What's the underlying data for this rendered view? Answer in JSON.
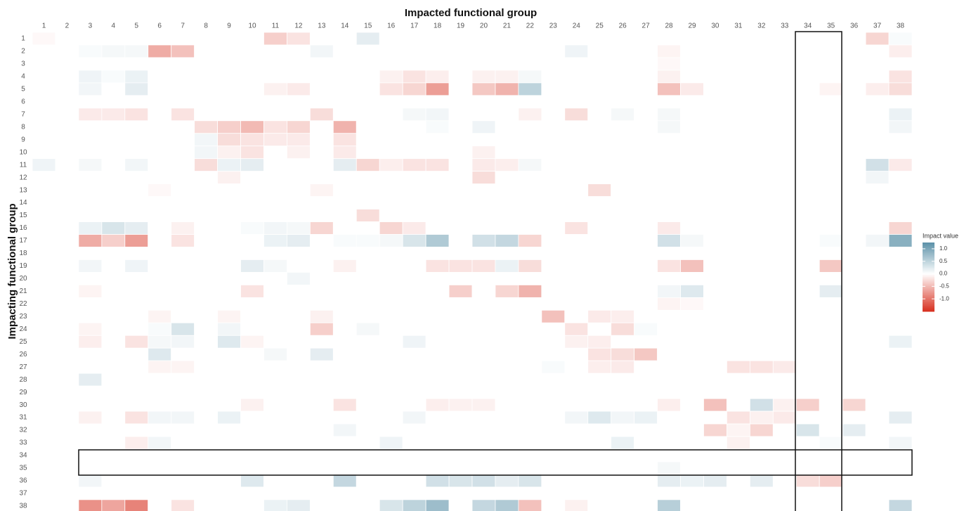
{
  "chart_data": {
    "type": "heatmap",
    "title": "Impacted functional group",
    "ylabel": "Impacting functional group",
    "legend_title": "Impact value",
    "x": [
      1,
      2,
      3,
      4,
      5,
      6,
      7,
      8,
      9,
      10,
      11,
      12,
      13,
      14,
      15,
      16,
      17,
      18,
      19,
      20,
      21,
      22,
      23,
      24,
      25,
      26,
      27,
      28,
      29,
      30,
      31,
      32,
      33,
      34,
      35,
      36,
      37,
      38
    ],
    "y": [
      1,
      2,
      3,
      4,
      5,
      6,
      7,
      8,
      9,
      10,
      11,
      12,
      13,
      14,
      15,
      16,
      17,
      18,
      19,
      20,
      21,
      22,
      23,
      24,
      25,
      26,
      27,
      28,
      29,
      30,
      31,
      32,
      33,
      34,
      35,
      36,
      37,
      38
    ],
    "zlim": [
      -1.5,
      1.25
    ],
    "zticks": [
      {
        "value": 1,
        "label": "1.0"
      },
      {
        "value": 0.5,
        "label": "0.5"
      },
      {
        "value": 0,
        "label": "0.0"
      },
      {
        "value": -0.5,
        "label": "-0.5"
      },
      {
        "value": -1,
        "label": "-1.0"
      }
    ],
    "colors": {
      "low": "#d7301f",
      "mid": "#ffffff",
      "high": "#5b91a8"
    },
    "z": [
      [
        -0.05,
        0,
        0,
        0,
        0,
        0,
        0,
        0,
        0,
        0,
        -0.35,
        -0.2,
        0,
        0,
        0.2,
        0,
        0,
        0,
        0,
        0,
        0,
        0,
        0,
        0,
        0,
        0,
        0,
        0,
        0,
        0,
        0,
        0,
        0,
        0,
        0,
        0,
        -0.3,
        0.05
      ],
      [
        0,
        0,
        0.05,
        0.08,
        0.08,
        -0.6,
        -0.45,
        0,
        0,
        0,
        0,
        0,
        0.1,
        0,
        0,
        0,
        0,
        0,
        0,
        0,
        0,
        0,
        0,
        0.12,
        0,
        0,
        0,
        -0.08,
        0,
        0,
        0,
        0,
        0,
        0,
        0,
        0,
        0,
        -0.12
      ],
      [
        0,
        0,
        0,
        0,
        0,
        0,
        0,
        0,
        0,
        0,
        0,
        0,
        0,
        0,
        0,
        0,
        0,
        0,
        0,
        0,
        0,
        0,
        0,
        0,
        0,
        0,
        0,
        -0.05,
        0,
        0,
        0,
        0,
        0,
        0,
        0,
        0,
        0,
        0
      ],
      [
        0,
        0,
        0.12,
        0.05,
        0.15,
        0,
        0,
        0,
        0,
        0,
        0,
        0,
        0,
        0,
        0,
        -0.1,
        -0.2,
        -0.12,
        0,
        -0.1,
        -0.1,
        0.08,
        0,
        0,
        0,
        0,
        0,
        -0.1,
        0,
        0,
        0,
        0,
        0,
        0,
        0,
        0,
        0,
        -0.2
      ],
      [
        0,
        0,
        0.1,
        0,
        0.2,
        0,
        0,
        0,
        0,
        0,
        -0.1,
        -0.15,
        0,
        0,
        0,
        -0.2,
        -0.3,
        -0.7,
        0,
        -0.4,
        -0.55,
        0.5,
        0,
        0,
        0,
        0,
        0,
        -0.45,
        -0.15,
        0,
        0,
        0,
        0,
        0,
        -0.08,
        0,
        -0.12,
        -0.25
      ],
      [
        0,
        0,
        0,
        0,
        0,
        0,
        0,
        0,
        0,
        0,
        0,
        0,
        0,
        0,
        0,
        0,
        0,
        0,
        0,
        0,
        0,
        0,
        0,
        0,
        0,
        0,
        0,
        0,
        0,
        0,
        0,
        0,
        0,
        0,
        0,
        0,
        0,
        0
      ],
      [
        0,
        0,
        -0.15,
        -0.15,
        -0.2,
        0,
        -0.2,
        0,
        0,
        0,
        0,
        0,
        -0.25,
        0,
        0,
        0,
        0.08,
        0.1,
        0,
        0,
        0,
        -0.1,
        0,
        -0.25,
        0,
        0.08,
        0,
        0.08,
        0,
        0,
        0,
        0,
        0,
        0,
        0,
        0,
        0,
        0.15
      ],
      [
        0,
        0,
        0,
        0,
        0,
        0,
        0,
        -0.25,
        -0.35,
        -0.5,
        -0.2,
        -0.3,
        0,
        -0.55,
        0,
        0,
        0,
        0.05,
        0,
        0.12,
        0,
        0,
        0,
        0,
        0,
        0,
        0,
        0.08,
        0,
        0,
        0,
        0,
        0,
        0,
        0,
        0,
        0,
        0.1
      ],
      [
        0,
        0,
        0,
        0,
        0,
        0,
        0,
        0.1,
        -0.25,
        -0.2,
        -0.15,
        -0.15,
        0,
        -0.2,
        0,
        0,
        0,
        0,
        0,
        0,
        0,
        0,
        0,
        0,
        0,
        0,
        0,
        0,
        0,
        0,
        0,
        0,
        0,
        0,
        0,
        0,
        0,
        0
      ],
      [
        0,
        0,
        0,
        0,
        0,
        0,
        0,
        0.1,
        -0.1,
        -0.2,
        0,
        -0.1,
        0,
        -0.15,
        0,
        0,
        0,
        0,
        0,
        -0.1,
        0,
        0,
        0,
        0,
        0,
        0,
        0,
        0,
        0,
        0,
        0,
        0,
        0,
        0,
        0,
        0,
        0,
        0
      ],
      [
        0.12,
        0,
        0.08,
        0,
        0.1,
        0,
        0,
        -0.25,
        0.15,
        0.2,
        0,
        0,
        0,
        0.2,
        -0.3,
        -0.12,
        -0.2,
        -0.2,
        0,
        -0.15,
        -0.12,
        0.08,
        0,
        0,
        0,
        0,
        0,
        0,
        0,
        0,
        0,
        0,
        0,
        0,
        0,
        0,
        0.35,
        -0.15
      ],
      [
        0,
        0,
        0,
        0,
        0,
        0,
        0,
        0,
        -0.1,
        0,
        0,
        0,
        0,
        0,
        0,
        0,
        0,
        0,
        0,
        -0.25,
        0,
        0,
        0,
        0,
        0,
        0,
        0,
        0,
        0,
        0,
        0,
        0,
        0,
        0,
        0,
        0,
        0.1,
        0
      ],
      [
        0,
        0,
        0,
        0,
        0,
        -0.05,
        0,
        0,
        0,
        0,
        0,
        0,
        -0.08,
        0,
        0,
        0,
        0,
        0,
        0,
        0,
        0,
        0,
        0,
        0,
        -0.25,
        0,
        0,
        0,
        0,
        0,
        0,
        0,
        0,
        0,
        0,
        0,
        0,
        0
      ],
      [
        0,
        0,
        0,
        0,
        0,
        0,
        0,
        0,
        0,
        0,
        0,
        0,
        0,
        0,
        0,
        0,
        0,
        0,
        0,
        0,
        0,
        0,
        0,
        0,
        0,
        0,
        0,
        0,
        0,
        0,
        0,
        0,
        0,
        0,
        0,
        0,
        0,
        0
      ],
      [
        0,
        0,
        0,
        0,
        0,
        0,
        0,
        0,
        0,
        0,
        0,
        0,
        0,
        0,
        -0.25,
        0,
        0,
        0,
        0,
        0,
        0,
        0,
        0,
        0,
        0,
        0,
        0,
        0,
        0,
        0,
        0,
        0,
        0,
        0,
        0,
        0,
        0,
        0
      ],
      [
        0,
        0,
        0.15,
        0.3,
        0.2,
        0,
        -0.1,
        0,
        0,
        0.05,
        0.1,
        0.08,
        -0.3,
        0,
        0,
        -0.3,
        -0.15,
        0,
        0,
        0,
        0,
        0,
        0,
        -0.2,
        0,
        0,
        0,
        -0.15,
        0,
        0,
        0,
        0,
        0,
        0,
        0,
        0,
        0,
        -0.3
      ],
      [
        0,
        0,
        -0.6,
        -0.35,
        -0.7,
        0,
        -0.2,
        0,
        0,
        0,
        0.15,
        0.2,
        0,
        0.05,
        0.05,
        0.08,
        0.3,
        0.6,
        0,
        0.35,
        0.45,
        -0.3,
        0,
        0,
        0,
        0,
        0,
        0.35,
        0.08,
        0,
        0,
        0,
        0,
        0,
        0.05,
        0,
        0.1,
        0.9
      ],
      [
        0,
        0,
        0,
        0,
        0,
        0,
        0,
        0,
        0,
        0,
        0,
        0,
        0,
        0,
        0,
        0,
        0,
        0,
        0,
        0,
        0,
        0,
        0,
        0,
        0,
        0,
        0,
        0,
        0,
        0,
        0,
        0,
        0,
        0,
        0,
        0,
        0,
        0
      ],
      [
        0,
        0,
        0.1,
        0,
        0.12,
        0,
        0,
        0,
        0,
        0.2,
        0.08,
        0,
        0,
        -0.1,
        0,
        0,
        0,
        -0.2,
        -0.2,
        -0.2,
        0.15,
        -0.25,
        0,
        0,
        0,
        0,
        0,
        -0.2,
        -0.45,
        0,
        0,
        0,
        0,
        0,
        -0.4,
        0,
        0,
        0
      ],
      [
        0,
        0,
        0,
        0,
        0,
        0,
        0,
        0,
        0,
        0,
        0,
        0.1,
        0,
        0,
        0,
        0,
        0,
        0,
        0,
        0,
        0,
        0,
        0,
        0,
        0,
        0,
        0,
        0,
        0,
        0,
        0,
        0,
        0,
        0,
        0,
        0,
        0,
        0
      ],
      [
        0,
        0,
        -0.08,
        0,
        0,
        0,
        0,
        0,
        0,
        -0.2,
        0,
        0,
        0,
        0,
        0,
        0,
        0,
        0,
        -0.35,
        0,
        -0.3,
        -0.55,
        0,
        0,
        0,
        0,
        0,
        0.1,
        0.25,
        0,
        0,
        0,
        0,
        0,
        0.2,
        0,
        0,
        0
      ],
      [
        0,
        0,
        0,
        0,
        0,
        0,
        0,
        0,
        0,
        0,
        0,
        0,
        0,
        0,
        0,
        0,
        0,
        0,
        0,
        0,
        0,
        0,
        0,
        0,
        0,
        0,
        0,
        -0.08,
        -0.05,
        0,
        0,
        0,
        0,
        0,
        0,
        0,
        0,
        0
      ],
      [
        0,
        0,
        0,
        0,
        0,
        -0.08,
        0,
        0,
        -0.08,
        0,
        0,
        0,
        -0.1,
        0,
        0,
        0,
        0,
        0,
        0,
        0,
        0,
        0,
        -0.45,
        0,
        -0.15,
        -0.12,
        0,
        0,
        0,
        0,
        0,
        0,
        0,
        0,
        0,
        0,
        0,
        0
      ],
      [
        0,
        0,
        -0.08,
        0,
        0,
        0.05,
        0.3,
        0,
        0.1,
        0,
        0,
        0,
        -0.35,
        0,
        0.08,
        0,
        0,
        0,
        0,
        0,
        0,
        0,
        0,
        -0.2,
        0,
        -0.25,
        0.05,
        0,
        0,
        0,
        0,
        0,
        0,
        0,
        0,
        0,
        0,
        0
      ],
      [
        0,
        0,
        -0.12,
        0,
        -0.2,
        0.08,
        0.1,
        0,
        0.25,
        -0.08,
        0,
        0,
        0,
        0,
        0,
        0,
        0.12,
        0,
        0,
        0,
        0,
        0,
        0,
        -0.1,
        -0.12,
        0,
        0,
        0,
        0,
        0,
        0,
        0,
        0,
        0,
        0,
        0,
        0,
        0.15
      ],
      [
        0,
        0,
        0,
        0,
        0,
        0.25,
        0,
        0,
        0,
        0,
        0.08,
        0,
        0.2,
        0,
        0,
        0,
        0,
        0,
        0,
        0,
        0,
        0,
        0,
        0,
        -0.2,
        -0.25,
        -0.4,
        0,
        0,
        0,
        0,
        0,
        0,
        0,
        0,
        0,
        0,
        0
      ],
      [
        0,
        0,
        0,
        0,
        0,
        -0.08,
        -0.08,
        0,
        0,
        0,
        0,
        0,
        0,
        0,
        0,
        0,
        0,
        0,
        0,
        0,
        0,
        0,
        0.05,
        0,
        -0.12,
        -0.15,
        0,
        0,
        0,
        0,
        -0.2,
        -0.2,
        -0.15,
        0,
        0,
        0,
        0,
        0
      ],
      [
        0,
        0,
        0.2,
        0,
        0,
        0,
        0,
        0,
        0,
        0,
        0,
        0,
        0,
        0,
        0,
        0,
        0,
        0,
        0,
        0,
        0,
        0,
        0,
        0,
        0,
        0,
        0,
        0,
        0,
        0,
        0,
        0,
        0,
        0,
        0,
        0,
        0,
        0
      ],
      [
        0,
        0,
        0,
        0,
        0,
        0,
        0,
        0,
        0,
        0,
        0,
        0,
        0,
        0,
        0,
        0,
        0,
        0,
        0,
        0,
        0,
        0,
        0,
        0,
        0,
        0,
        0,
        0,
        0,
        0,
        0,
        0,
        0,
        0,
        0,
        0,
        0,
        0
      ],
      [
        0,
        0,
        0,
        0,
        0,
        0,
        0,
        0,
        0,
        -0.1,
        0,
        0,
        0,
        -0.2,
        0,
        0,
        0,
        -0.12,
        -0.1,
        -0.1,
        0,
        0,
        0,
        0,
        0,
        0,
        0,
        -0.12,
        0,
        -0.45,
        0,
        0.35,
        -0.1,
        -0.35,
        0,
        -0.3,
        0,
        0
      ],
      [
        0,
        0,
        -0.1,
        0,
        -0.2,
        0.1,
        0.1,
        0,
        0.15,
        0,
        0,
        0,
        0,
        0,
        0,
        0,
        0.1,
        0,
        0,
        0,
        0,
        0,
        0,
        0.1,
        0.25,
        0.1,
        0.15,
        0,
        0,
        0,
        -0.2,
        -0.1,
        -0.15,
        0,
        0,
        0,
        0,
        0.2
      ],
      [
        0,
        0,
        0,
        0,
        0,
        0,
        0,
        0,
        0,
        0,
        0,
        0,
        0,
        0.1,
        0,
        0,
        0,
        0,
        0,
        0,
        0,
        0,
        0,
        0,
        0,
        0,
        0,
        0,
        0,
        -0.3,
        -0.08,
        -0.3,
        0,
        0.3,
        0,
        0.2,
        0,
        0
      ],
      [
        0,
        0,
        0,
        0,
        -0.12,
        0.1,
        0,
        0,
        0,
        0,
        0,
        0,
        0,
        0,
        0,
        0.12,
        0,
        0,
        0,
        0,
        0,
        0,
        0,
        0,
        0,
        0.15,
        0,
        0,
        0,
        0,
        -0.1,
        0,
        0,
        0,
        0.05,
        0,
        0,
        0.1
      ],
      [
        0,
        0,
        0,
        0,
        0,
        0,
        0,
        0,
        0,
        0,
        0,
        0,
        0,
        0,
        0,
        0,
        0,
        0,
        0,
        0,
        0,
        0,
        0,
        0,
        0,
        0,
        0,
        0,
        0,
        0,
        0,
        0,
        0,
        0,
        0,
        0,
        0,
        0
      ],
      [
        0,
        0,
        0,
        0,
        0,
        0,
        0,
        0,
        0,
        0,
        0,
        0,
        0,
        0,
        0,
        0,
        0,
        0,
        0,
        0,
        0,
        0,
        0,
        0,
        0,
        0,
        0,
        0.08,
        0,
        0,
        0,
        0,
        0,
        0,
        0,
        0,
        0,
        0
      ],
      [
        0,
        0,
        0.1,
        0,
        0,
        0,
        0,
        0,
        0,
        0.25,
        0,
        0,
        0,
        0.45,
        0,
        0,
        0,
        0.35,
        0.3,
        0.35,
        0.2,
        0.3,
        0,
        0,
        0,
        0,
        0,
        0.2,
        0.15,
        0.2,
        0,
        0.2,
        0,
        -0.25,
        -0.35,
        0,
        0,
        0
      ],
      [
        0,
        0,
        0,
        0,
        0,
        0,
        0,
        0,
        0,
        0,
        0,
        0,
        0,
        0,
        0,
        0,
        0,
        0,
        0,
        0,
        0,
        0,
        0,
        0,
        0,
        0,
        0,
        0,
        0,
        0,
        0,
        0,
        0,
        0,
        0,
        0,
        0,
        0
      ],
      [
        0,
        0,
        -0.8,
        -0.65,
        -0.9,
        0,
        -0.2,
        0,
        0,
        0,
        0.15,
        0.2,
        0,
        0,
        0,
        0.3,
        0.5,
        0.75,
        0,
        0.45,
        0.6,
        -0.45,
        0,
        -0.1,
        0,
        0,
        0,
        0.55,
        0,
        0,
        0,
        0,
        0,
        0,
        0,
        0,
        0,
        0.45
      ]
    ]
  }
}
